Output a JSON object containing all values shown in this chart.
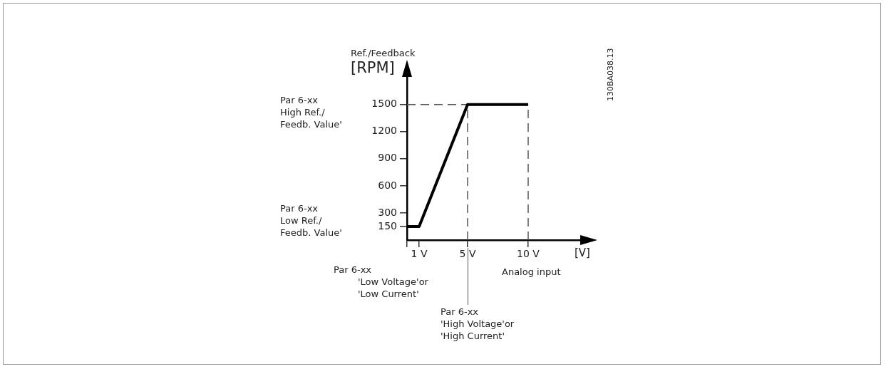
{
  "chart_data": {
    "type": "line",
    "xlabel": "[V]",
    "ylabel": "Ref./Feedback\n[RPM]",
    "x": [
      0,
      1,
      5,
      10
    ],
    "series": [
      {
        "color": "#000000",
        "values": [
          150,
          150,
          1500,
          1500
        ]
      }
    ],
    "xlim": [
      0,
      15
    ],
    "xticks": [
      {
        "value": 0,
        "label": null
      },
      {
        "value": 1,
        "label": "1 V"
      },
      {
        "value": 5,
        "label": "5 V"
      },
      {
        "value": 10,
        "label": "10 V"
      }
    ],
    "ylim": [
      0,
      1900
    ],
    "yticks": [
      150,
      300,
      600,
      900,
      1200,
      1500
    ],
    "ref_lines": [
      {
        "axis": "y",
        "value": 1500,
        "color": "#555555",
        "line_style": "dashed"
      },
      {
        "axis": "x",
        "value": 5,
        "color": "#555555",
        "line_style": "dashed"
      },
      {
        "axis": "x",
        "value": 10,
        "color": "#555555",
        "line_style": "dashed"
      }
    ],
    "annotations": [
      "Par 6-xx\nHigh Ref./\nFeedb. Value'",
      "Par 6-xx\nLow Ref./\nFeedb. Value'",
      "Par 6-xx\n'Low Voltage'or\n'Low Current'",
      "Par 6-xx\n'High Voltage'or\n'High Current'",
      "Analog input",
      "130BA038.13"
    ],
    "grid": false,
    "legend": false,
    "marker": "none",
    "line_style": "solid"
  }
}
